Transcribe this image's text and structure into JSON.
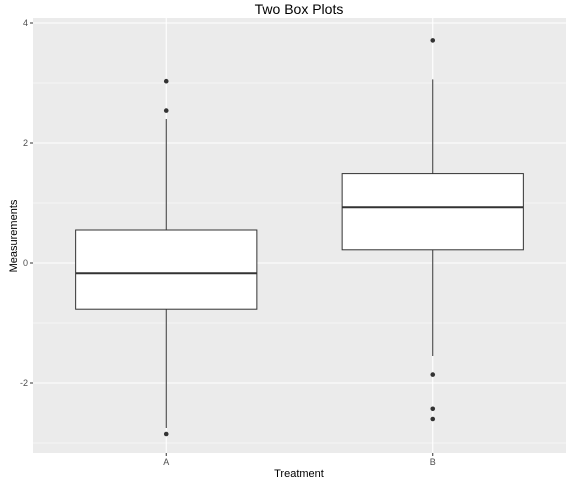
{
  "chart_data": {
    "type": "boxplot",
    "title": "Two Box Plots",
    "xlabel": "Treatment",
    "ylabel": "Measurements",
    "categories": [
      "A",
      "B"
    ],
    "ylim": [
      -3.1,
      4.0
    ],
    "yticks": [
      -2,
      0,
      2,
      4
    ],
    "ytick_labels": [
      "-2",
      "0",
      "2",
      "4"
    ],
    "grid": true,
    "background": "#ebebeb",
    "box_fill": "#ffffff",
    "line_color": "#333333",
    "boxes": [
      {
        "category": "A",
        "q1": -0.77,
        "median": -0.17,
        "q3": 0.55,
        "whisker_low": -2.75,
        "whisker_high": 2.4,
        "outliers": [
          3.03,
          2.54,
          -2.85
        ]
      },
      {
        "category": "B",
        "q1": 0.22,
        "median": 0.93,
        "q3": 1.49,
        "whisker_low": -1.55,
        "whisker_high": 3.06,
        "outliers": [
          3.71,
          -1.86,
          -2.43,
          -2.6
        ]
      }
    ]
  }
}
